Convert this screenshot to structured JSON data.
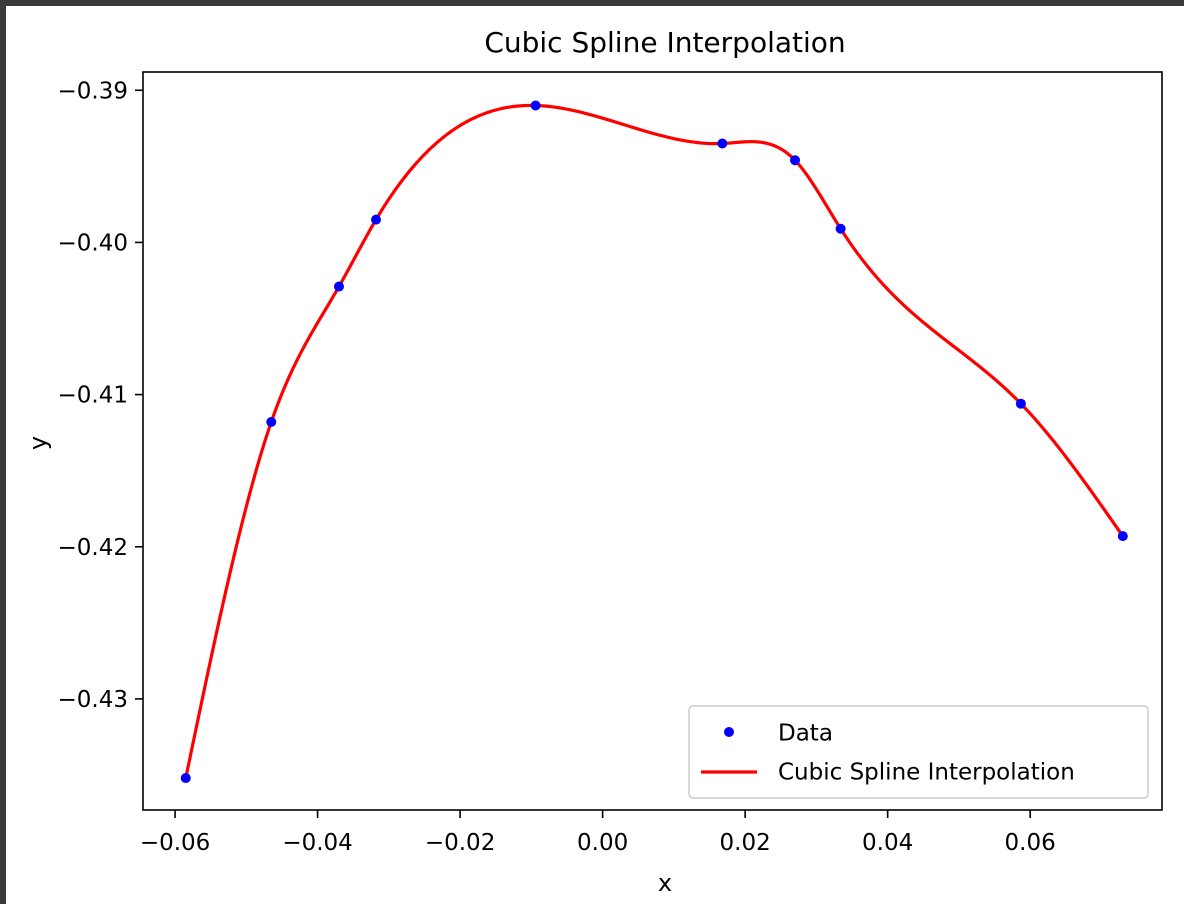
{
  "chart_data": {
    "type": "line",
    "title": "Cubic Spline Interpolation",
    "xlabel": "x",
    "ylabel": "y",
    "xlim": [
      -0.0645,
      0.0785
    ],
    "ylim": [
      -0.4373,
      -0.3888
    ],
    "xticks": [
      -0.06,
      -0.04,
      -0.02,
      0.0,
      0.02,
      0.04,
      0.06
    ],
    "xtick_labels": [
      "−0.06",
      "−0.04",
      "−0.02",
      "0.00",
      "0.02",
      "0.04",
      "0.06"
    ],
    "yticks": [
      -0.39,
      -0.4,
      -0.41,
      -0.42,
      -0.43
    ],
    "ytick_labels": [
      "−0.39",
      "−0.40",
      "−0.41",
      "−0.42",
      "−0.43"
    ],
    "grid": false,
    "legend_position": "lower-right",
    "series": [
      {
        "name": "Data",
        "kind": "scatter",
        "color": "#0000ff",
        "x": [
          -0.0585,
          -0.0465,
          -0.037,
          -0.0318,
          -0.0094,
          0.0168,
          0.027,
          0.0334,
          0.0587,
          0.073
        ],
        "y": [
          -0.4352,
          -0.4118,
          -0.4029,
          -0.3985,
          -0.391,
          -0.3935,
          -0.3946,
          -0.3991,
          -0.4106,
          -0.4193
        ]
      },
      {
        "name": "Cubic Spline Interpolation",
        "kind": "line",
        "color": "#ff0000"
      }
    ]
  }
}
